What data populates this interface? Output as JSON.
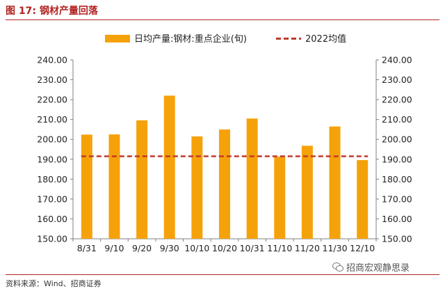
{
  "figure": {
    "title": "图 17:  钢材产量回落",
    "source": "资料来源：Wind、招商证券",
    "watermark": "招商宏观静思录"
  },
  "colors": {
    "bar": "#f5a20a",
    "avg_line": "#c0392b",
    "axis": "#7f7f7f",
    "title": "#b22222"
  },
  "chart_data": {
    "type": "bar",
    "categories": [
      "8/31",
      "9/10",
      "9/20",
      "9/30",
      "10/10",
      "10/20",
      "10/31",
      "11/10",
      "11/20",
      "11/30",
      "12/10"
    ],
    "series": [
      {
        "name": "日均产量:钢材:重点企业(旬)",
        "type": "bar",
        "values": [
          202.4,
          202.5,
          209.6,
          222.0,
          201.5,
          205.0,
          210.5,
          191.3,
          196.8,
          206.5,
          189.6
        ]
      },
      {
        "name": "2022均值",
        "type": "dashed-line",
        "value": 191.5
      }
    ],
    "y_left": {
      "min": 150,
      "max": 240,
      "step": 10,
      "decimals": 2
    },
    "y_right": {
      "min": 150,
      "max": 240,
      "step": 10,
      "decimals": 2
    },
    "legend": "top-center"
  }
}
